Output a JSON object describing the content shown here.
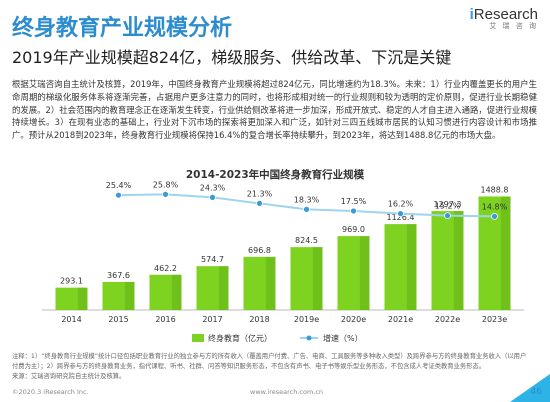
{
  "logo": {
    "brand": "Research",
    "brand_prefix": "i",
    "sub": "艾 瑞 咨 询"
  },
  "title": "终身教育产业规模分析",
  "subtitle": "2019年产业规模超824亿，梯级服务、供给改革、下沉是关键",
  "body": "根据艾瑞咨询自主统计及核算，2019年，中国终身教育产业规模将超过824亿元，同比增速约为18.3%。未来：1）行业内覆盖更长的用户生命周期的梯级化服务体系将逐渐完善，占据用户更多注意力的同时，也将形成相对统一的行业规则和较为透明的定价原则，促进行业长期稳健的发展。2）社会范围内的教育理念正在逐渐发生转变，行业供给侧改革将进一步加深，形成开放式、稳定的人才自主进入通路，促进行业规模持续增长。3）在现有业态的基础上，行业对下沉市场的探索将更加深入和广泛，如针对三四五线城市居民的认知习惯进行内容设计和市场推广。预计从2018到2023年，终身教育行业规模将保持16.4%的复合增长率持续攀升，到2023年，将达到1488.8亿元的市场大盘。",
  "chart_data": {
    "type": "bar",
    "title": "2014-2023年中国终身教育行业规模",
    "categories": [
      "2014",
      "2015",
      "2016",
      "2017",
      "2018",
      "2019e",
      "2020e",
      "2021e",
      "2022e",
      "2023e"
    ],
    "series": [
      {
        "name": "终身教育（亿元）",
        "type": "bar",
        "values": [
          293.1,
          367.6,
          462.2,
          574.7,
          696.8,
          824.5,
          969.0,
          1126.4,
          1297.3,
          1488.8
        ],
        "labels": [
          "293.1",
          "367.6",
          "462.2",
          "574.7",
          "696.8",
          "824.5",
          "969.0",
          "1126.4",
          "1297.3",
          "1488.8"
        ]
      },
      {
        "name": "增速（%）",
        "type": "line",
        "values": [
          null,
          25.4,
          25.8,
          24.3,
          21.3,
          18.3,
          17.5,
          16.2,
          15.2,
          14.8
        ],
        "labels": [
          "",
          "25.4%",
          "25.8%",
          "24.3%",
          "21.3%",
          "18.3%",
          "17.5%",
          "16.2%",
          "15.2%",
          "14.8%"
        ]
      }
    ],
    "ylim": [
      0,
      1600
    ],
    "ylim_line": [
      0,
      40
    ],
    "grid": false,
    "legend_position": "bottom-center",
    "colors": {
      "bar": "#7ed321",
      "bar_dark": "#5fa814",
      "line": "#9fd4ef",
      "marker": "#3a9bd8"
    }
  },
  "footnote": "注释：1）“终身教育行业规模”统计口径包括职业教育行业的独立参与方的所有收入（覆盖用户付费、广告、电商、工具服务等多种收入类型）及跨界参与方的终身教育业务收入（以用户付费为主）；2）跨界参与方的终身教育业务，指代课程、听书、社群、问答等知识服务形态，不包含有声书、电子书等娱乐型业务形态，不包含成人考证类教育业务形态。",
  "source": "来源：艾瑞咨询研究院自主统计及核算。",
  "footer": {
    "copyright": "©2020.3 iResearch Inc.",
    "website": "www.iresearch.com.cn",
    "page": "46"
  }
}
